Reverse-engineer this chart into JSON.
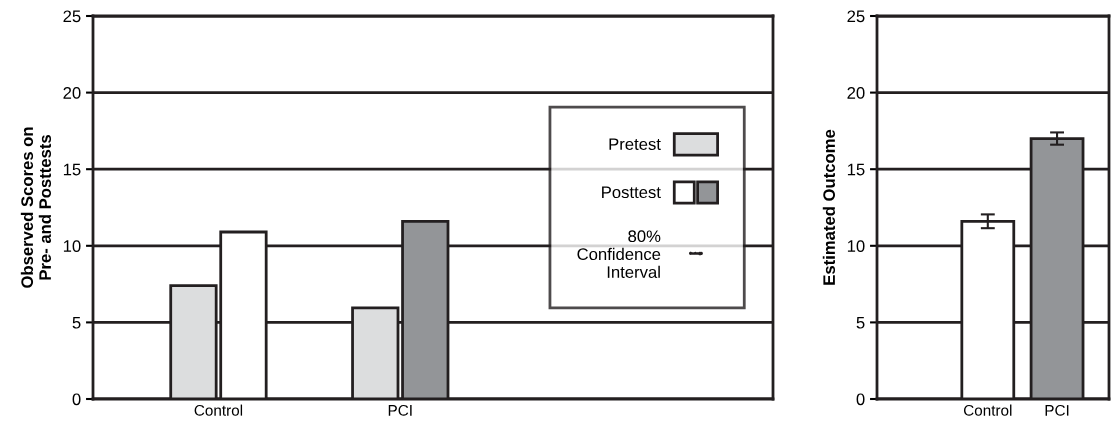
{
  "chart_data": [
    {
      "type": "bar",
      "ylabel": "Observed Scores on\nPre- and Posttests",
      "categories": [
        "Control",
        "PCI"
      ],
      "ylim": [
        0,
        25
      ],
      "yticks": [
        0,
        5,
        10,
        15,
        20,
        25
      ],
      "grid": "y",
      "legend": "right",
      "annotations": [
        "80%\nConfidence\nInterval"
      ],
      "series": [
        {
          "name": "Pretest",
          "color": "#dcddde",
          "values": [
            7.4,
            5.95
          ]
        },
        {
          "name": "Posttest",
          "colors": [
            "#ffffff",
            "#939598"
          ],
          "values": [
            10.9,
            11.6
          ]
        }
      ]
    },
    {
      "type": "bar",
      "ylabel": "Estimated Outcome",
      "categories": [
        "Control",
        "PCI"
      ],
      "ylim": [
        0,
        25
      ],
      "yticks": [
        0,
        5,
        10,
        15,
        20,
        25
      ],
      "grid": "y",
      "colors": [
        "#ffffff",
        "#939598"
      ],
      "values": [
        11.6,
        17.0
      ],
      "errors": [
        0.45,
        0.4
      ]
    }
  ]
}
